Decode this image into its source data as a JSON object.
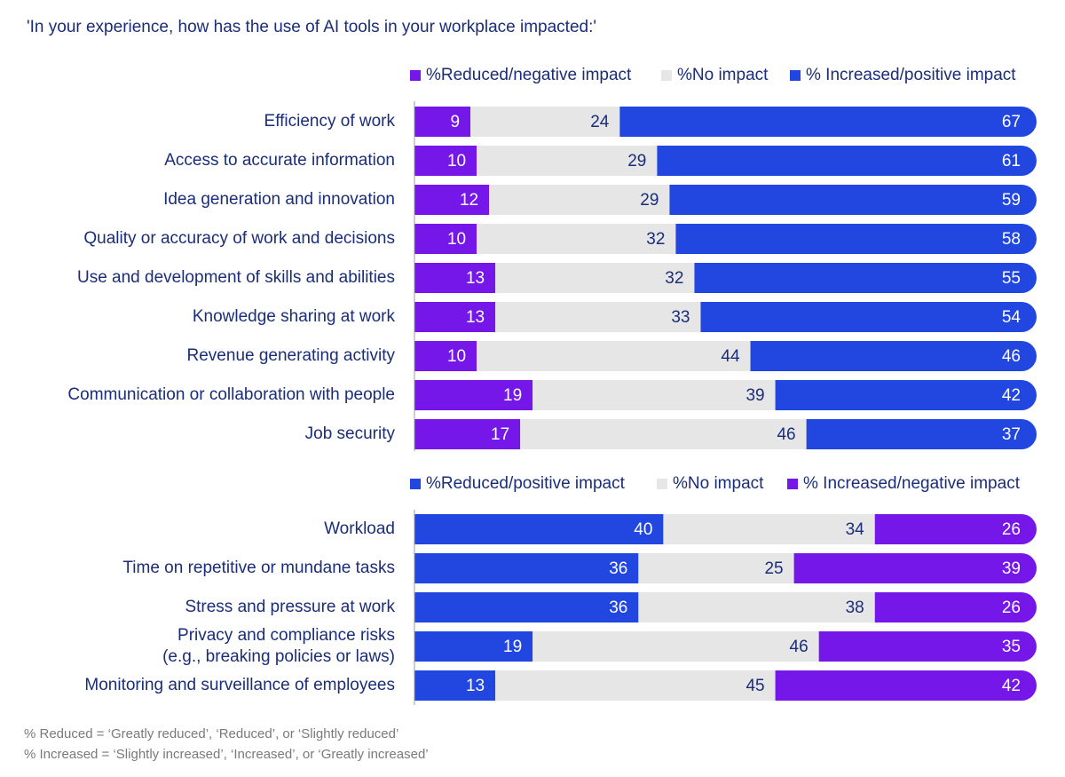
{
  "question": "'In your experience, how has the use of AI tools in your workplace impacted:'",
  "footnotes": [
    "% Reduced = ‘Greatly reduced’, ‘Reduced’, or ‘Slightly reduced’",
    "% Increased = ‘Slightly increased’, ‘Increased’, or ‘Greatly increased’"
  ],
  "colors": {
    "blue": "#2247e0",
    "purple": "#7517e8",
    "gray": "#e6e6e6",
    "label": "#1a2d7a",
    "axis": "#9a9a9a"
  },
  "chart_data": [
    {
      "type": "bar",
      "stacked": true,
      "orientation": "horizontal",
      "xlim": [
        0,
        100
      ],
      "legend_position": "top",
      "categories": [
        "Efficiency of work",
        "Access to accurate information",
        "Idea generation and innovation",
        "Quality or accuracy of work and decisions",
        "Use and development of skills and abilities",
        "Knowledge sharing at work",
        "Revenue generating activity",
        "Communication or collaboration with people",
        "Job security"
      ],
      "series": [
        {
          "name": "%Reduced/negative impact",
          "color": "#7517e8",
          "values": [
            9,
            10,
            12,
            10,
            13,
            13,
            10,
            19,
            17
          ]
        },
        {
          "name": "%No impact",
          "color": "#e6e6e6",
          "values": [
            24,
            29,
            29,
            32,
            32,
            33,
            44,
            39,
            46
          ]
        },
        {
          "name": "% Increased/positive impact",
          "color": "#2247e0",
          "values": [
            67,
            61,
            59,
            58,
            55,
            54,
            46,
            42,
            37
          ]
        }
      ]
    },
    {
      "type": "bar",
      "stacked": true,
      "orientation": "horizontal",
      "xlim": [
        0,
        100
      ],
      "legend_position": "top",
      "categories": [
        "Workload",
        "Time  on repetitive or mundane tasks",
        "Stress and pressure at work",
        "Privacy and compliance risks\n(e.g., breaking policies or laws)",
        "Monitoring and surveillance of employees"
      ],
      "series": [
        {
          "name": "%Reduced/positive impact",
          "color": "#2247e0",
          "values": [
            40,
            36,
            36,
            19,
            13
          ]
        },
        {
          "name": "%No impact",
          "color": "#e6e6e6",
          "values": [
            34,
            25,
            38,
            46,
            45
          ]
        },
        {
          "name": "% Increased/negative impact",
          "color": "#7517e8",
          "values": [
            26,
            39,
            26,
            35,
            42
          ]
        }
      ]
    }
  ]
}
